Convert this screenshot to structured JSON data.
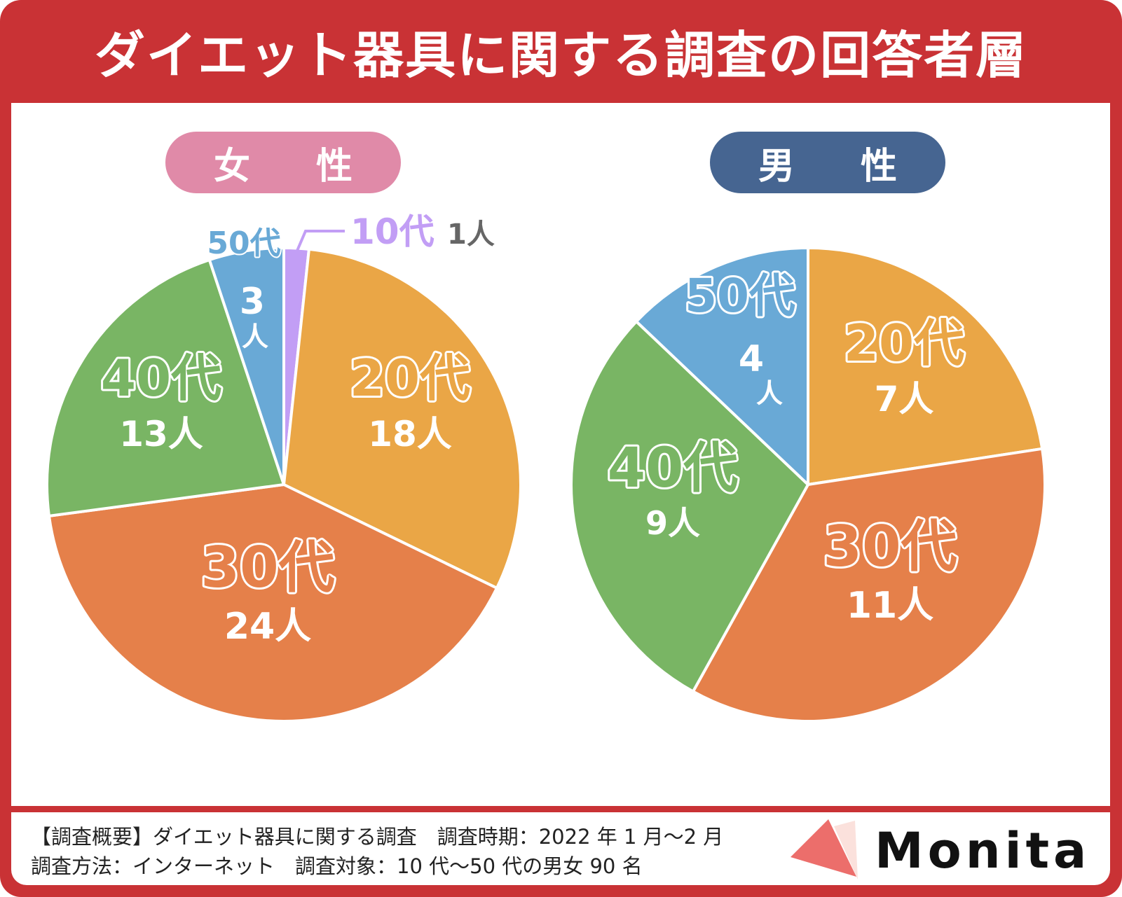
{
  "title": "ダイエット器具に関する調査の回答者層",
  "colors": {
    "frame": "#c93235",
    "female_pill": "#e08aa8",
    "male_pill": "#466591",
    "teens": "#c29ef5",
    "twenties": "#eaa646",
    "thirties": "#e5804a",
    "forties": "#79b564",
    "fifties": "#69a9d6",
    "callout_count": "#666666"
  },
  "chart_data": [
    {
      "type": "pie",
      "title": "女性",
      "title_display": "女 性",
      "unit": "人",
      "start": "12 o'clock, clockwise",
      "categories": [
        "10代",
        "20代",
        "30代",
        "40代",
        "50代"
      ],
      "values": [
        1,
        18,
        24,
        13,
        3
      ],
      "labels": [
        {
          "category": "10代",
          "count": "1人",
          "placement": "outside callout"
        },
        {
          "category": "20代",
          "count": "18人"
        },
        {
          "category": "30代",
          "count": "24人"
        },
        {
          "category": "40代",
          "count": "13人"
        },
        {
          "category": "50代",
          "count": "3人"
        }
      ]
    },
    {
      "type": "pie",
      "title": "男性",
      "title_display": "男 性",
      "unit": "人",
      "start": "12 o'clock, clockwise",
      "categories": [
        "20代",
        "30代",
        "40代",
        "50代"
      ],
      "values": [
        7,
        11,
        9,
        4
      ],
      "labels": [
        {
          "category": "20代",
          "count": "7人"
        },
        {
          "category": "30代",
          "count": "11人"
        },
        {
          "category": "40代",
          "count": "9人"
        },
        {
          "category": "50代",
          "count": "4人"
        }
      ]
    }
  ],
  "footer": {
    "line1": "【調査概要】ダイエット器具に関する調査　調査時期：2022 年 1 月〜2 月",
    "line2": "調査方法：インターネット　調査対象：10 代〜50 代の男女 90 名"
  },
  "logo": {
    "text": "Monita"
  }
}
